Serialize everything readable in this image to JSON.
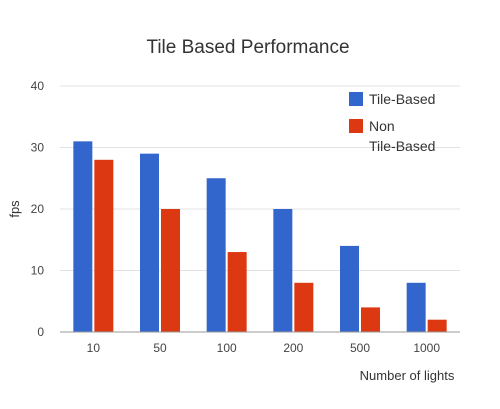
{
  "chart_data": {
    "type": "bar",
    "title": "Tile Based Performance",
    "xlabel": "Number of lights",
    "ylabel": "fps",
    "categories": [
      "10",
      "50",
      "100",
      "200",
      "500",
      "1000"
    ],
    "yticks": [
      "0",
      "10",
      "20",
      "30",
      "40"
    ],
    "ylim": [
      0,
      40
    ],
    "grid": true,
    "legend_position": "top-right",
    "series": [
      {
        "name": "Tile-Based",
        "color": "#3366cc",
        "values": [
          31,
          29,
          25,
          20,
          14,
          8
        ]
      },
      {
        "name": "Non Tile-Based",
        "legend_lines": [
          "Non",
          "Tile-Based"
        ],
        "color": "#dc3912",
        "values": [
          28,
          20,
          13,
          8,
          4,
          2
        ]
      }
    ]
  }
}
